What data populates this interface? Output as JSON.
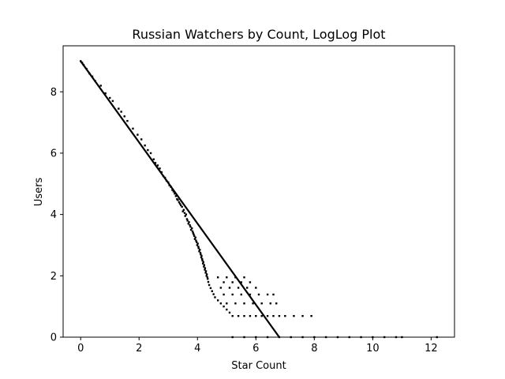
{
  "chart_data": {
    "type": "scatter",
    "title": "Russian Watchers by Count, LogLog Plot",
    "xlabel": "Star Count",
    "ylabel": "Users",
    "xlim": [
      -0.6,
      12.8
    ],
    "ylim": [
      0,
      9.5
    ],
    "xticks": [
      0,
      2,
      4,
      6,
      8,
      10,
      12
    ],
    "yticks": [
      0,
      2,
      4,
      6,
      8
    ],
    "grid": false,
    "legend": "none",
    "colors": {
      "points": "#000000",
      "fit_line": "#000000"
    },
    "fit_line": {
      "x": [
        0,
        6.8
      ],
      "y": [
        9.0,
        0
      ]
    },
    "points": [
      [
        0.0,
        9.0
      ],
      [
        0.05,
        8.95
      ],
      [
        0.1,
        8.88
      ],
      [
        0.2,
        8.75
      ],
      [
        0.3,
        8.6
      ],
      [
        0.4,
        8.5
      ],
      [
        0.5,
        8.35
      ],
      [
        0.69,
        8.2
      ],
      [
        0.85,
        7.95
      ],
      [
        1.0,
        7.8
      ],
      [
        1.1,
        7.7
      ],
      [
        1.3,
        7.45
      ],
      [
        1.39,
        7.35
      ],
      [
        1.5,
        7.2
      ],
      [
        1.6,
        7.05
      ],
      [
        1.79,
        6.8
      ],
      [
        1.95,
        6.6
      ],
      [
        2.08,
        6.45
      ],
      [
        2.2,
        6.25
      ],
      [
        2.3,
        6.1
      ],
      [
        2.4,
        6.0
      ],
      [
        2.5,
        5.8
      ],
      [
        2.56,
        5.68
      ],
      [
        2.64,
        5.6
      ],
      [
        2.71,
        5.5
      ],
      [
        2.77,
        5.38
      ],
      [
        2.83,
        5.25
      ],
      [
        2.89,
        5.2
      ],
      [
        2.94,
        5.1
      ],
      [
        3.0,
        5.05
      ],
      [
        3.04,
        4.95
      ],
      [
        3.09,
        4.9
      ],
      [
        3.14,
        4.8
      ],
      [
        3.18,
        4.75
      ],
      [
        3.22,
        4.68
      ],
      [
        3.26,
        4.6
      ],
      [
        3.3,
        4.5
      ],
      [
        3.33,
        4.47
      ],
      [
        3.37,
        4.4
      ],
      [
        3.4,
        4.35
      ],
      [
        3.43,
        4.3
      ],
      [
        3.47,
        4.25
      ],
      [
        3.5,
        4.1
      ],
      [
        3.53,
        4.15
      ],
      [
        3.56,
        4.05
      ],
      [
        3.58,
        3.95
      ],
      [
        3.61,
        4.0
      ],
      [
        3.64,
        3.85
      ],
      [
        3.66,
        3.8
      ],
      [
        3.69,
        3.7
      ],
      [
        3.71,
        3.75
      ],
      [
        3.74,
        3.65
      ],
      [
        3.76,
        3.6
      ],
      [
        3.78,
        3.5
      ],
      [
        3.81,
        3.55
      ],
      [
        3.83,
        3.45
      ],
      [
        3.85,
        3.4
      ],
      [
        3.87,
        3.35
      ],
      [
        3.89,
        3.3
      ],
      [
        3.91,
        3.2
      ],
      [
        3.93,
        3.25
      ],
      [
        3.95,
        3.15
      ],
      [
        3.97,
        3.1
      ],
      [
        3.99,
        3.0
      ],
      [
        4.01,
        3.05
      ],
      [
        4.03,
        2.95
      ],
      [
        4.04,
        2.9
      ],
      [
        4.06,
        2.8
      ],
      [
        4.08,
        2.85
      ],
      [
        4.1,
        2.75
      ],
      [
        4.11,
        2.7
      ],
      [
        4.13,
        2.6
      ],
      [
        4.14,
        2.65
      ],
      [
        4.16,
        2.55
      ],
      [
        4.17,
        2.5
      ],
      [
        4.19,
        2.4
      ],
      [
        4.2,
        2.45
      ],
      [
        4.22,
        2.3
      ],
      [
        4.23,
        2.35
      ],
      [
        4.25,
        2.2
      ],
      [
        4.26,
        2.25
      ],
      [
        4.28,
        2.1
      ],
      [
        4.29,
        2.15
      ],
      [
        4.31,
        2.0
      ],
      [
        4.32,
        2.05
      ],
      [
        4.34,
        1.95
      ],
      [
        4.35,
        1.9
      ],
      [
        4.37,
        1.8
      ],
      [
        4.4,
        1.7
      ],
      [
        4.45,
        1.6
      ],
      [
        4.5,
        1.5
      ],
      [
        4.55,
        1.4
      ],
      [
        4.6,
        1.3
      ],
      [
        4.7,
        1.2
      ],
      [
        4.8,
        1.1
      ],
      [
        4.9,
        1.0
      ],
      [
        5.0,
        0.9
      ],
      [
        5.1,
        0.8
      ],
      [
        5.2,
        0.69
      ],
      [
        5.4,
        0.69
      ],
      [
        5.6,
        0.69
      ],
      [
        5.8,
        0.69
      ],
      [
        6.0,
        0.69
      ],
      [
        6.2,
        0.69
      ],
      [
        6.4,
        0.69
      ],
      [
        6.6,
        0.69
      ],
      [
        6.8,
        0.69
      ],
      [
        7.0,
        0.69
      ],
      [
        7.3,
        0.69
      ],
      [
        7.6,
        0.69
      ],
      [
        7.9,
        0.69
      ],
      [
        5.0,
        1.1
      ],
      [
        5.3,
        1.1
      ],
      [
        5.6,
        1.1
      ],
      [
        5.9,
        1.1
      ],
      [
        6.2,
        1.1
      ],
      [
        6.5,
        1.1
      ],
      [
        6.7,
        1.1
      ],
      [
        4.9,
        1.39
      ],
      [
        5.2,
        1.39
      ],
      [
        5.5,
        1.39
      ],
      [
        5.8,
        1.39
      ],
      [
        6.1,
        1.39
      ],
      [
        6.4,
        1.39
      ],
      [
        6.6,
        1.39
      ],
      [
        4.8,
        1.61
      ],
      [
        5.1,
        1.61
      ],
      [
        5.4,
        1.61
      ],
      [
        5.7,
        1.61
      ],
      [
        6.0,
        1.61
      ],
      [
        4.9,
        1.79
      ],
      [
        5.2,
        1.79
      ],
      [
        5.5,
        1.79
      ],
      [
        5.8,
        1.79
      ],
      [
        4.7,
        1.95
      ],
      [
        5.0,
        1.95
      ],
      [
        5.3,
        1.95
      ],
      [
        5.6,
        1.95
      ],
      [
        5.2,
        0.0
      ],
      [
        5.6,
        0.0
      ],
      [
        6.0,
        0.0
      ],
      [
        6.4,
        0.0
      ],
      [
        6.8,
        0.0
      ],
      [
        7.2,
        0.0
      ],
      [
        7.6,
        0.0
      ],
      [
        8.0,
        0.0
      ],
      [
        8.4,
        0.0
      ],
      [
        8.8,
        0.0
      ],
      [
        9.2,
        0.0
      ],
      [
        9.6,
        0.0
      ],
      [
        10.0,
        0.0
      ],
      [
        10.4,
        0.0
      ],
      [
        10.8,
        0.0
      ],
      [
        11.0,
        0.0
      ],
      [
        12.2,
        0.0
      ]
    ]
  }
}
